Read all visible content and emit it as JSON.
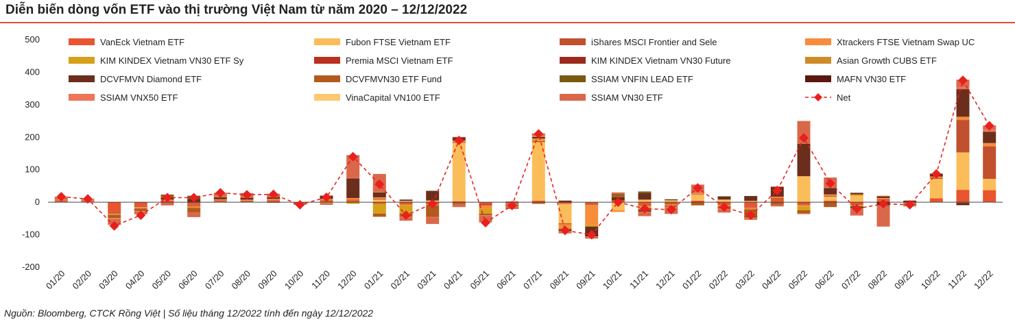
{
  "header": {
    "title": "Diễn biến dòng vốn ETF vào thị trường Việt Nam từ năm 2020 – 12/12/2022",
    "accent_color": "#e8463a"
  },
  "footer": {
    "source": "Nguồn: Bloomberg, CTCK Rồng Việt | Số liệu tháng 12/2022 tính đến ngày 12/12/2022"
  },
  "chart_data": {
    "type": "bar",
    "stacked": true,
    "title": "Diễn biến dòng vốn ETF vào thị trường Việt Nam từ năm 2020 – 12/12/2022",
    "xlabel": "",
    "ylabel": "",
    "ylim": [
      -200,
      500
    ],
    "yticks": [
      -200,
      -100,
      0,
      100,
      200,
      300,
      400,
      500
    ],
    "grid": false,
    "legend_position": "top",
    "categories": [
      "01/20",
      "02/20",
      "03/20",
      "04/20",
      "05/20",
      "06/20",
      "07/20",
      "08/20",
      "09/20",
      "10/20",
      "11/20",
      "12/20",
      "01/21",
      "02/21",
      "03/21",
      "04/21",
      "05/21",
      "06/21",
      "07/21",
      "08/21",
      "09/21",
      "10/21",
      "11/21",
      "12/21",
      "01/22",
      "02/22",
      "03/22",
      "04/22",
      "05/22",
      "06/22",
      "07/22",
      "08/22",
      "09/22",
      "10/22",
      "11/22",
      "12/22"
    ],
    "series": [
      {
        "name": "VanEck Vietnam ETF",
        "color": "#e8552f",
        "values": [
          4,
          2,
          -30,
          -12,
          3,
          -10,
          4,
          3,
          5,
          -2,
          5,
          5,
          -5,
          -5,
          -5,
          3,
          -5,
          -3,
          5,
          -5,
          -5,
          5,
          -8,
          -4,
          5,
          -5,
          -15,
          10,
          -5,
          5,
          -5,
          6,
          -2,
          12,
          38,
          37
        ]
      },
      {
        "name": "Fubon FTSE Vietnam ETF",
        "color": "#fbbd5a",
        "values": [
          0,
          0,
          0,
          0,
          0,
          0,
          0,
          0,
          0,
          0,
          0,
          0,
          8,
          4,
          5,
          180,
          0,
          0,
          180,
          -60,
          0,
          -25,
          8,
          6,
          18,
          8,
          4,
          0,
          80,
          12,
          20,
          0,
          0,
          60,
          115,
          35
        ]
      },
      {
        "name": "iShares MSCI Frontier and Sele",
        "color": "#c0502e",
        "values": [
          2,
          2,
          -5,
          -3,
          2,
          -3,
          2,
          2,
          2,
          -1,
          2,
          3,
          3,
          -2,
          -2,
          3,
          -5,
          -2,
          3,
          -3,
          -3,
          0,
          -3,
          -3,
          2,
          -3,
          -3,
          3,
          -3,
          3,
          -3,
          3,
          -1,
          3,
          100,
          100
        ]
      },
      {
        "name": "Xtrackers FTSE Vietnam Swap UC",
        "color": "#f78c3b",
        "values": [
          3,
          1,
          -4,
          -4,
          3,
          -4,
          3,
          3,
          3,
          -1,
          3,
          5,
          4,
          -3,
          -3,
          4,
          -10,
          -2,
          3,
          -8,
          -62,
          -5,
          -5,
          -3,
          3,
          -4,
          -4,
          4,
          -5,
          4,
          -4,
          4,
          -1,
          4,
          10,
          10
        ]
      },
      {
        "name": "KIM KINDEX Vietnam VN30 ETF Sy",
        "color": "#d7a019",
        "values": [
          0,
          0,
          0,
          0,
          0,
          0,
          0,
          0,
          0,
          0,
          -3,
          -5,
          -30,
          -25,
          0,
          0,
          -15,
          0,
          5,
          -5,
          -5,
          0,
          -5,
          0,
          0,
          0,
          0,
          0,
          -12,
          0,
          4,
          0,
          0,
          0,
          0,
          0
        ]
      },
      {
        "name": "Premia MSCI Vietnam ETF",
        "color": "#b8321f",
        "values": [
          0,
          0,
          0,
          0,
          0,
          0,
          0,
          0,
          0,
          0,
          0,
          0,
          0,
          0,
          0,
          0,
          0,
          0,
          0,
          0,
          0,
          0,
          0,
          0,
          0,
          0,
          0,
          0,
          0,
          0,
          0,
          0,
          0,
          0,
          0,
          0
        ]
      },
      {
        "name": "KIM KINDEX Vietnam VN30 Future",
        "color": "#9a2b1c",
        "values": [
          0,
          0,
          0,
          0,
          0,
          0,
          0,
          0,
          0,
          0,
          0,
          0,
          0,
          0,
          0,
          0,
          0,
          0,
          0,
          0,
          0,
          0,
          0,
          0,
          0,
          0,
          0,
          0,
          0,
          0,
          0,
          0,
          0,
          0,
          0,
          0
        ]
      },
      {
        "name": "Asian Growth CUBS ETF",
        "color": "#cf8a2a",
        "values": [
          0,
          0,
          0,
          0,
          0,
          0,
          0,
          0,
          0,
          0,
          0,
          0,
          0,
          0,
          0,
          0,
          0,
          0,
          0,
          0,
          0,
          0,
          0,
          0,
          0,
          0,
          0,
          0,
          0,
          0,
          0,
          0,
          0,
          0,
          0,
          0
        ]
      },
      {
        "name": "DCVFMVN Diamond ETF",
        "color": "#6b2e1d",
        "values": [
          0,
          0,
          0,
          0,
          5,
          10,
          5,
          5,
          5,
          0,
          10,
          60,
          15,
          4,
          30,
          10,
          0,
          2,
          5,
          5,
          -25,
          10,
          20,
          3,
          0,
          10,
          15,
          30,
          100,
          20,
          5,
          5,
          5,
          8,
          85,
          35
        ]
      },
      {
        "name": "DCVFMVN30 ETF Fund",
        "color": "#b35a1e",
        "values": [
          3,
          2,
          -10,
          -8,
          5,
          -15,
          3,
          2,
          -2,
          -3,
          0,
          0,
          -10,
          -10,
          -35,
          -5,
          -5,
          -5,
          -5,
          -5,
          0,
          5,
          -5,
          -4,
          -10,
          -8,
          -20,
          -8,
          -10,
          -15,
          0,
          0,
          -5,
          0,
          -3,
          0
        ]
      },
      {
        "name": "SSIAM VNFIN LEAD ETF",
        "color": "#7a5a10",
        "values": [
          0,
          0,
          0,
          0,
          5,
          10,
          0,
          0,
          0,
          0,
          0,
          0,
          0,
          0,
          0,
          0,
          0,
          0,
          0,
          0,
          0,
          5,
          5,
          0,
          0,
          0,
          -5,
          0,
          0,
          0,
          -5,
          0,
          0,
          0,
          0,
          0
        ]
      },
      {
        "name": "MAFN VN30 ETF",
        "color": "#5a1810",
        "values": [
          0,
          0,
          0,
          0,
          0,
          0,
          0,
          0,
          0,
          0,
          0,
          0,
          0,
          0,
          0,
          0,
          0,
          0,
          0,
          -3,
          -5,
          0,
          -3,
          0,
          0,
          0,
          0,
          0,
          0,
          0,
          -2,
          -10,
          0,
          0,
          -6,
          0
        ]
      },
      {
        "name": "SSIAM VNX50 ETF",
        "color": "#ef7458",
        "values": [
          2,
          1,
          -3,
          -2,
          1,
          0,
          2,
          1,
          1,
          -1,
          1,
          2,
          2,
          -2,
          -2,
          1,
          -2,
          -1,
          3,
          -2,
          -2,
          0,
          -2,
          -2,
          1,
          -2,
          -2,
          2,
          -2,
          2,
          -2,
          2,
          -1,
          2,
          5,
          5
        ]
      },
      {
        "name": "VinaCapital VN100 ETF",
        "color": "#fdc970",
        "values": [
          0,
          0,
          0,
          0,
          0,
          0,
          0,
          0,
          0,
          0,
          0,
          0,
          0,
          0,
          0,
          0,
          0,
          0,
          0,
          0,
          0,
          0,
          0,
          0,
          0,
          0,
          0,
          0,
          0,
          0,
          0,
          0,
          0,
          0,
          0,
          0
        ]
      },
      {
        "name": "SSIAM VN30 ETF",
        "color": "#d9684a",
        "values": [
          3,
          3,
          -18,
          -8,
          -10,
          -14,
          10,
          12,
          10,
          0,
          -5,
          70,
          55,
          -10,
          -20,
          -10,
          -20,
          -8,
          8,
          -5,
          -5,
          5,
          -12,
          -20,
          25,
          -10,
          -5,
          -5,
          70,
          30,
          -20,
          -65,
          -3,
          0,
          24,
          14
        ]
      }
    ],
    "net": {
      "name": "Net",
      "color": "#e8201e",
      "values": [
        17,
        10,
        -73,
        -40,
        14,
        14,
        29,
        23,
        24,
        -8,
        15,
        140,
        55,
        -40,
        -5,
        190,
        -63,
        -10,
        210,
        -87,
        -100,
        0,
        -20,
        -23,
        44,
        -15,
        -40,
        36,
        198,
        58,
        -20,
        -5,
        -8,
        87,
        375,
        235
      ]
    }
  }
}
